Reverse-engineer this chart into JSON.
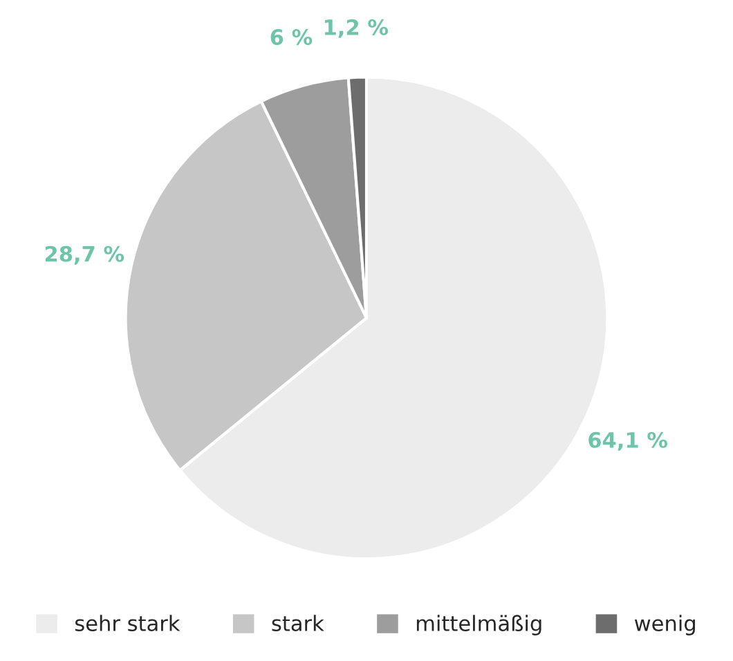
{
  "chart_data": {
    "type": "pie",
    "categories": [
      "sehr stark",
      "stark",
      "mittelmäßig",
      "wenig"
    ],
    "values": [
      64.1,
      28.7,
      6,
      1.2
    ],
    "value_labels": [
      "64,1 %",
      "28,7 %",
      "6 %",
      "1,2 %"
    ],
    "colors": [
      "#ececec",
      "#c6c6c6",
      "#9d9d9d",
      "#6d6d6d"
    ],
    "legend": "bottom"
  }
}
